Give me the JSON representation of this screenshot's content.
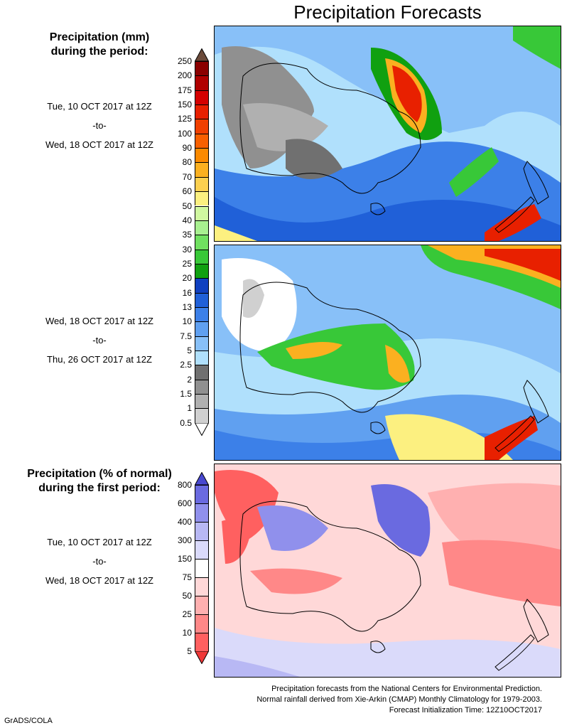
{
  "title": "Precipitation Forecasts",
  "precip_header": [
    "Precipitation (mm)",
    "during the period:"
  ],
  "period1": {
    "start": "Tue, 10 OCT 2017 at 12Z",
    "sep": "-to-",
    "end": "Wed, 18 OCT 2017 at 12Z"
  },
  "period2": {
    "start": "Wed, 18 OCT 2017 at 12Z",
    "sep": "-to-",
    "end": "Thu, 26 OCT 2017 at 12Z"
  },
  "pct_header": [
    "Precipitation (% of normal)",
    "during the first period:"
  ],
  "period3": {
    "start": "Tue, 10 OCT 2017 at 12Z",
    "sep": "-to-",
    "end": "Wed, 18 OCT 2017 at 12Z"
  },
  "precip_scale": {
    "labels": [
      "250",
      "200",
      "175",
      "150",
      "125",
      "100",
      "90",
      "80",
      "70",
      "60",
      "50",
      "40",
      "35",
      "30",
      "25",
      "20",
      "16",
      "13",
      "10",
      "7.5",
      "5",
      "2.5",
      "2",
      "1.5",
      "1",
      "0.5"
    ],
    "colors": [
      "#6b4a3a",
      "#8b0000",
      "#b00000",
      "#d40000",
      "#e82000",
      "#f04000",
      "#f86000",
      "#fb8a00",
      "#fbb020",
      "#fcd050",
      "#fcf080",
      "#d0f8a0",
      "#a8f090",
      "#70e060",
      "#38c838",
      "#10a010",
      "#1040c0",
      "#2060d8",
      "#3c80e8",
      "#60a0f0",
      "#88c0f8",
      "#b0e0fc",
      "#707070",
      "#909090",
      "#b0b0b0",
      "#d0d0d0",
      "#ffffff"
    ]
  },
  "pct_scale": {
    "labels": [
      "800",
      "600",
      "400",
      "300",
      "150",
      "75",
      "50",
      "25",
      "10",
      "5"
    ],
    "colors": [
      "#4848d0",
      "#6a6ae0",
      "#9090ec",
      "#b8b8f4",
      "#dadafa",
      "#ffffff",
      "#ffd8d8",
      "#ffb0b0",
      "#ff8888",
      "#ff6060",
      "#f03838"
    ]
  },
  "footer": [
    "Precipitation forecasts from the National Centers for Environmental Prediction.",
    "Normal rainfall derived from Xie-Arkin (CMAP) Monthly Climatology for 1979-2003.",
    "Forecast Initialization Time: 12Z10OCT2017"
  ],
  "credit": "GrADS/COLA"
}
